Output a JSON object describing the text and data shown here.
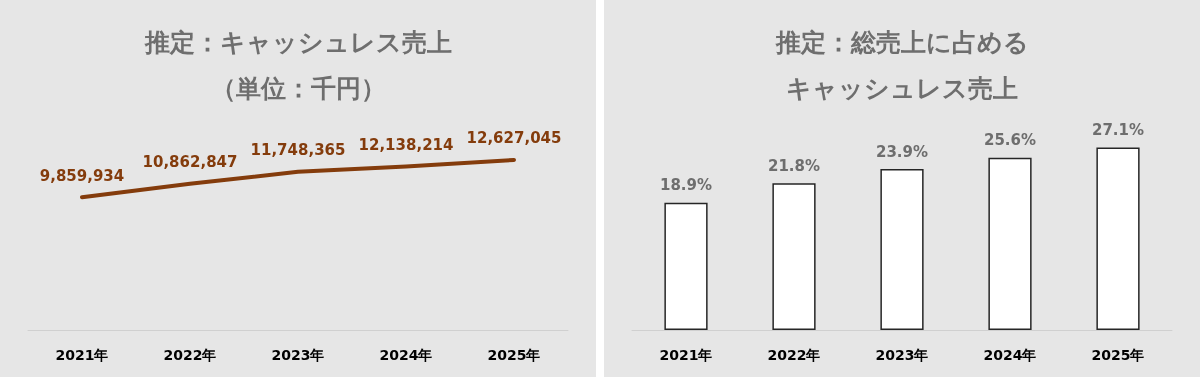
{
  "chart_data": [
    {
      "type": "line",
      "title": "推定：キャッシュレス売上",
      "subtitle": "（単位：千円）",
      "categories": [
        "2021年",
        "2022年",
        "2023年",
        "2024年",
        "2025年"
      ],
      "series": [
        {
          "color": "#843c0c",
          "values": [
            9859934,
            10862847,
            11748365,
            12138214,
            12627045
          ],
          "value_labels": [
            "9,859,934",
            "10,862,847",
            "11,748,365",
            "12,138,214",
            "12,627,045"
          ]
        }
      ],
      "tick_labels": "x",
      "grid": false,
      "marker": "none",
      "line_style": "solid"
    },
    {
      "type": "bar",
      "title": "推定：総売上に占めるキャッシュレス売上",
      "categories": [
        "2021年",
        "2022年",
        "2023年",
        "2024年",
        "2025年"
      ],
      "series": [
        {
          "color": "#ffffff",
          "values": [
            18.9,
            21.8,
            23.9,
            25.6,
            27.1
          ],
          "value_labels": [
            "18.9%",
            "21.8%",
            "23.9%",
            "25.6%",
            "27.1%"
          ]
        }
      ],
      "tick_labels": "x",
      "grid": false
    }
  ]
}
